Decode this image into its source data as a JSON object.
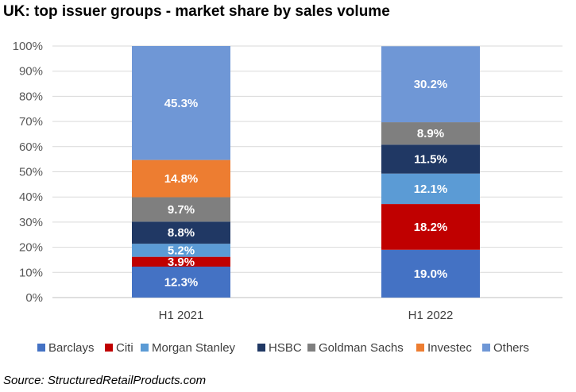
{
  "title": "UK: top issuer groups - market share by sales volume",
  "source": "Source: StructuredRetailProducts.com",
  "chart_data": {
    "type": "bar",
    "stacked": true,
    "categories": [
      "H1 2021",
      "H1 2022"
    ],
    "series": [
      {
        "name": "Barclays",
        "color": "#4472c4",
        "values": [
          12.3,
          19.0
        ],
        "labels": [
          "12.3%",
          "19.0%"
        ]
      },
      {
        "name": "Citi",
        "color": "#c00000",
        "values": [
          3.9,
          18.2
        ],
        "labels": [
          "3.9%",
          "18.2%"
        ]
      },
      {
        "name": "Morgan Stanley",
        "color": "#5b9bd5",
        "values": [
          5.2,
          12.1
        ],
        "labels": [
          "5.2%",
          "12.1%"
        ]
      },
      {
        "name": "HSBC",
        "color": "#203864",
        "values": [
          8.8,
          11.5
        ],
        "labels": [
          "8.8%",
          "11.5%"
        ]
      },
      {
        "name": "Goldman Sachs",
        "color": "#7f7f7f",
        "values": [
          9.7,
          8.9
        ],
        "labels": [
          "9.7%",
          "8.9%"
        ]
      },
      {
        "name": "Investec",
        "color": "#ed7d31",
        "values": [
          14.8,
          0
        ],
        "labels": [
          "14.8%",
          ""
        ]
      },
      {
        "name": "Others",
        "color": "#6f97d6",
        "values": [
          45.3,
          30.2
        ],
        "labels": [
          "45.3%",
          "30.2%"
        ]
      }
    ],
    "ylim": [
      0,
      100
    ],
    "yticks": [
      "0%",
      "10%",
      "20%",
      "30%",
      "40%",
      "50%",
      "60%",
      "70%",
      "80%",
      "90%",
      "100%"
    ],
    "grid": true,
    "legend": "bottom"
  }
}
